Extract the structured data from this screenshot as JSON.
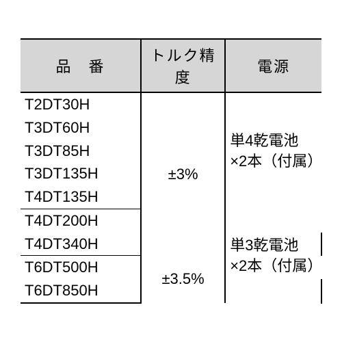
{
  "headers": {
    "part": "品　番",
    "accuracy": "トルク精度",
    "power": "電源"
  },
  "groups": [
    {
      "parts": [
        "T2DT30H",
        "T3DT60H",
        "T3DT85H",
        "T3DT135H",
        "T4DT135H"
      ],
      "accuracy": "±3%",
      "power": "単4乾電池\n×2本（付属）"
    },
    {
      "parts": [
        "T4DT200H",
        "T4DT340H"
      ],
      "accuracy": "",
      "power": "単3乾電池\n×2本（付属）"
    },
    {
      "parts": [
        "T6DT500H",
        "T6DT850H"
      ],
      "accuracy": "±3.5%",
      "power": ""
    }
  ],
  "colors": {
    "header_bg": "#d6d6d6",
    "line": "#000000",
    "bg": "#ffffff",
    "text": "#000000"
  }
}
